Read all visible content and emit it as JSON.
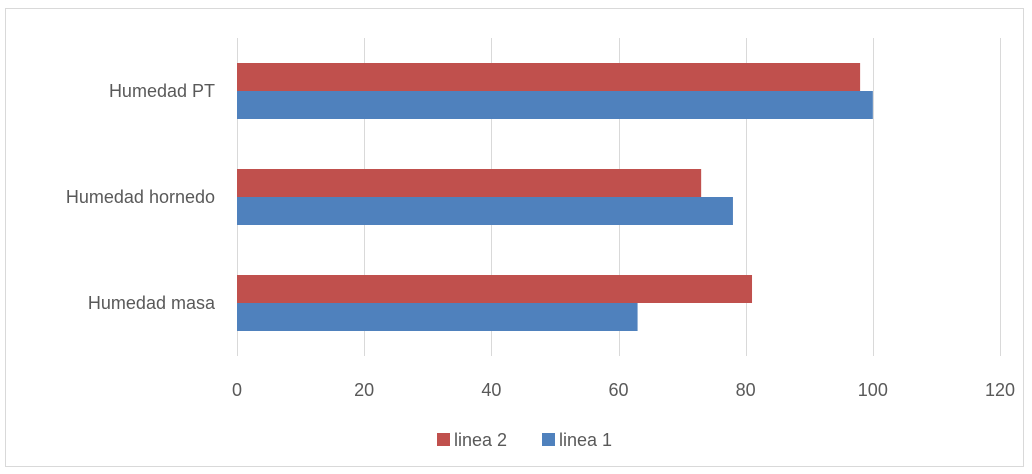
{
  "chart_data": {
    "type": "bar",
    "orientation": "horizontal",
    "categories": [
      "Humedad masa",
      "Humedad hornedo",
      "Humedad PT"
    ],
    "series": [
      {
        "name": "linea 1",
        "values": [
          63,
          78,
          100
        ],
        "color": "#4f81bd"
      },
      {
        "name": "linea 2",
        "values": [
          81,
          73,
          98
        ],
        "color": "#c0504d"
      }
    ],
    "xlim": [
      0,
      120
    ],
    "xticks": [
      0,
      20,
      40,
      60,
      80,
      100,
      120
    ],
    "grid": "vertical",
    "legend": {
      "position": "bottom",
      "order": [
        "linea 2",
        "linea 1"
      ]
    },
    "title": "",
    "xlabel": "",
    "ylabel": ""
  }
}
